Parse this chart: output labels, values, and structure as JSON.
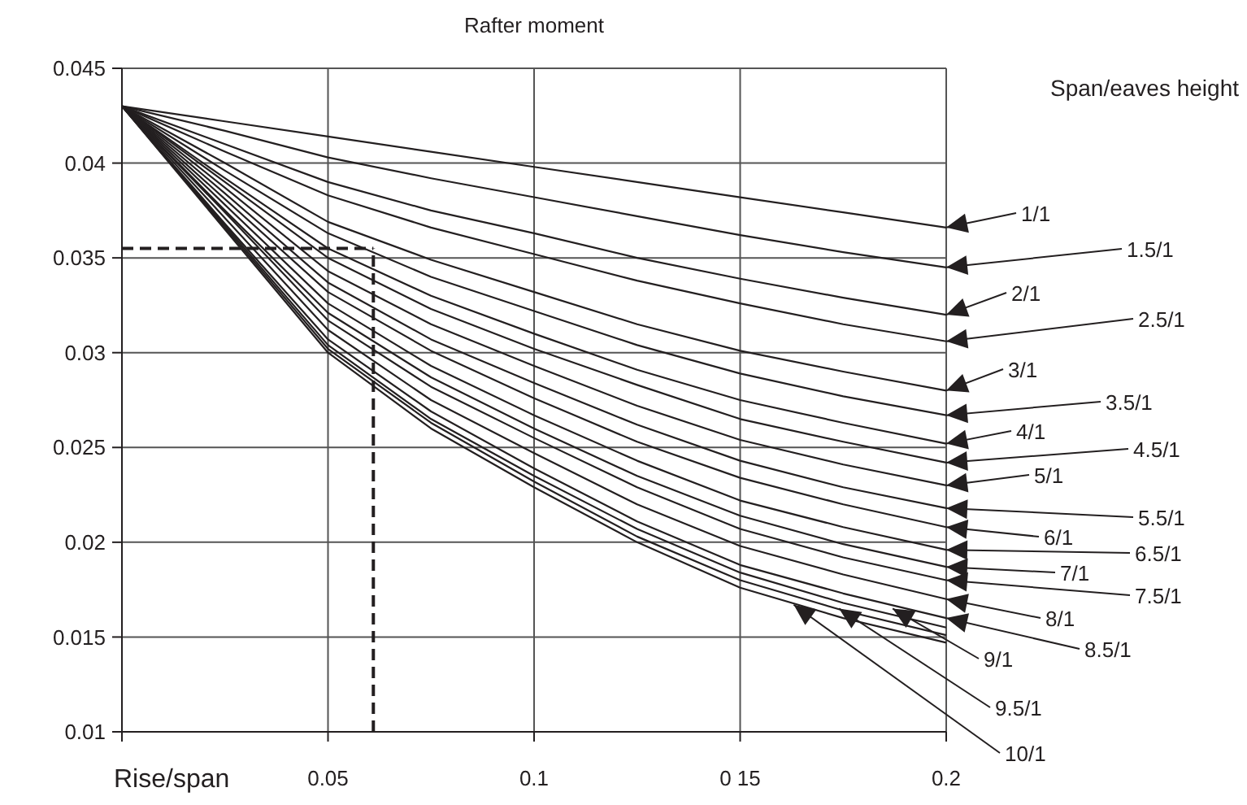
{
  "chart_data": {
    "type": "line",
    "title": "Rafter moment",
    "legend_title": "Span/eaves height",
    "xlabel": "Rise/span",
    "x": [
      0,
      0.025,
      0.05,
      0.075,
      0.1,
      0.125,
      0.15,
      0.175,
      0.2
    ],
    "xlim": [
      0,
      0.2
    ],
    "xticks": [
      {
        "value": 0,
        "label": null
      },
      0.05,
      0.1,
      {
        "value": 0.15,
        "label": "0 15"
      },
      0.2
    ],
    "ylim": [
      0.01,
      0.045
    ],
    "yticks": [
      0.01,
      0.015,
      0.02,
      0.025,
      0.03,
      0.035,
      0.04,
      0.045
    ],
    "grid": true,
    "marker": "none",
    "line_style": "solid",
    "series": [
      {
        "color": "#231f20",
        "values": [
          0.043,
          0.0422,
          0.0414,
          0.0406,
          0.0398,
          0.039,
          0.0382,
          0.0374,
          0.0366
        ]
      },
      {
        "color": "#231f20",
        "values": [
          0.043,
          0.0417,
          0.0403,
          0.0392,
          0.0382,
          0.0372,
          0.0362,
          0.0353,
          0.0345
        ]
      },
      {
        "color": "#231f20",
        "values": [
          0.043,
          0.041,
          0.039,
          0.0375,
          0.0363,
          0.035,
          0.0339,
          0.0329,
          0.032
        ]
      },
      {
        "color": "#231f20",
        "values": [
          0.043,
          0.0406,
          0.0383,
          0.0366,
          0.0352,
          0.0338,
          0.0326,
          0.0315,
          0.0306
        ]
      },
      {
        "color": "#231f20",
        "values": [
          0.043,
          0.04,
          0.0369,
          0.0349,
          0.0332,
          0.0315,
          0.0301,
          0.029,
          0.028
        ]
      },
      {
        "color": "#231f20",
        "values": [
          0.043,
          0.0396,
          0.0363,
          0.034,
          0.0322,
          0.0304,
          0.0289,
          0.0277,
          0.0267
        ]
      },
      {
        "color": "#231f20",
        "values": [
          0.043,
          0.0392,
          0.0355,
          0.033,
          0.031,
          0.0291,
          0.0275,
          0.0263,
          0.0252
        ]
      },
      {
        "color": "#231f20",
        "values": [
          0.043,
          0.039,
          0.035,
          0.0323,
          0.0302,
          0.0283,
          0.0265,
          0.0253,
          0.0242
        ]
      },
      {
        "color": "#231f20",
        "values": [
          0.043,
          0.0387,
          0.0343,
          0.0315,
          0.0293,
          0.0272,
          0.0254,
          0.0241,
          0.023
        ]
      },
      {
        "color": "#231f20",
        "values": [
          0.043,
          0.0384,
          0.0337,
          0.0307,
          0.0284,
          0.0262,
          0.0243,
          0.0229,
          0.0218
        ]
      },
      {
        "color": "#231f20",
        "values": [
          0.043,
          0.0381,
          0.0332,
          0.0301,
          0.0276,
          0.0253,
          0.0234,
          0.022,
          0.0208
        ]
      },
      {
        "color": "#231f20",
        "values": [
          0.043,
          0.0378,
          0.0326,
          0.0293,
          0.0267,
          0.0243,
          0.0222,
          0.0208,
          0.0196
        ]
      },
      {
        "color": "#231f20",
        "values": [
          0.043,
          0.0375,
          0.0321,
          0.0287,
          0.026,
          0.0235,
          0.0214,
          0.0199,
          0.0187
        ]
      },
      {
        "color": "#231f20",
        "values": [
          0.043,
          0.0374,
          0.0317,
          0.0282,
          0.0255,
          0.0229,
          0.0207,
          0.0192,
          0.018
        ]
      },
      {
        "color": "#231f20",
        "values": [
          0.043,
          0.0371,
          0.0312,
          0.0275,
          0.0247,
          0.022,
          0.0198,
          0.0183,
          0.017
        ]
      },
      {
        "color": "#231f20",
        "values": [
          0.043,
          0.0368,
          0.0307,
          0.0269,
          0.0239,
          0.0211,
          0.0188,
          0.0173,
          0.016
        ]
      },
      {
        "color": "#231f20",
        "values": [
          0.043,
          0.0367,
          0.0304,
          0.0265,
          0.0235,
          0.0207,
          0.0184,
          0.0168,
          0.0155
        ]
      },
      {
        "color": "#231f20",
        "values": [
          0.043,
          0.0366,
          0.0302,
          0.0263,
          0.0232,
          0.0203,
          0.018,
          0.0164,
          0.0151
        ]
      },
      {
        "color": "#231f20",
        "values": [
          0.043,
          0.0365,
          0.03,
          0.026,
          0.0229,
          0.02,
          0.0176,
          0.016,
          0.0147
        ]
      }
    ],
    "ref_lines": [
      {
        "axis": "x",
        "value": 0.061,
        "line_style": "dashed",
        "color": "#231f20"
      },
      {
        "axis": "y",
        "value": 0.0355,
        "line_style": "dashed",
        "color": "#231f20"
      }
    ],
    "annotations": [
      {
        "text": "1/1",
        "x": 0.2,
        "y": 0.0366
      },
      {
        "text": "1.5/1",
        "x": 0.2,
        "y": 0.0345
      },
      {
        "text": "2/1",
        "x": 0.2,
        "y": 0.032
      },
      {
        "text": "2.5/1",
        "x": 0.2,
        "y": 0.0306
      },
      {
        "text": "3/1",
        "x": 0.2,
        "y": 0.028
      },
      {
        "text": "3.5/1",
        "x": 0.2,
        "y": 0.0267
      },
      {
        "text": "4/1",
        "x": 0.2,
        "y": 0.0252
      },
      {
        "text": "4.5/1",
        "x": 0.2,
        "y": 0.0242
      },
      {
        "text": "5/1",
        "x": 0.2,
        "y": 0.023
      },
      {
        "text": "5.5/1",
        "x": 0.2,
        "y": 0.0218
      },
      {
        "text": "6/1",
        "x": 0.2,
        "y": 0.0208
      },
      {
        "text": "6.5/1",
        "x": 0.2,
        "y": 0.0196
      },
      {
        "text": "7/1",
        "x": 0.2,
        "y": 0.0187
      },
      {
        "text": "7.5/1",
        "x": 0.2,
        "y": 0.018
      },
      {
        "text": "8/1",
        "x": 0.2,
        "y": 0.017
      },
      {
        "text": "8.5/1",
        "x": 0.2,
        "y": 0.016
      },
      {
        "text": "9/1",
        "x": 0.187,
        "y": 0.0165
      },
      {
        "text": "9.5/1",
        "x": 0.174,
        "y": 0.0165
      },
      {
        "text": "10/1",
        "x": 0.163,
        "y": 0.0167
      }
    ]
  }
}
